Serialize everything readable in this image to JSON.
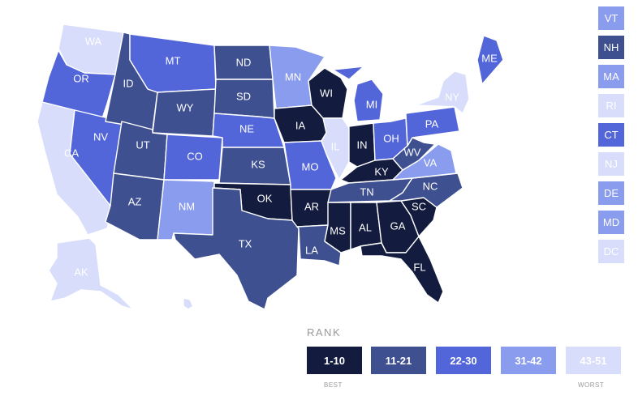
{
  "colors": {
    "tier1": "#131c3f",
    "tier2": "#3e5090",
    "tier3": "#5265d9",
    "tier4": "#8a9cee",
    "tier5": "#d7ddfa"
  },
  "states": {
    "WA": {
      "label": "WA",
      "tier": 5
    },
    "OR": {
      "label": "OR",
      "tier": 3
    },
    "CA": {
      "label": "CA",
      "tier": 5
    },
    "NV": {
      "label": "NV",
      "tier": 3
    },
    "ID": {
      "label": "ID",
      "tier": 2
    },
    "MT": {
      "label": "MT",
      "tier": 3
    },
    "WY": {
      "label": "WY",
      "tier": 2
    },
    "UT": {
      "label": "UT",
      "tier": 2
    },
    "AZ": {
      "label": "AZ",
      "tier": 2
    },
    "CO": {
      "label": "CO",
      "tier": 3
    },
    "NM": {
      "label": "NM",
      "tier": 4
    },
    "ND": {
      "label": "ND",
      "tier": 2
    },
    "SD": {
      "label": "SD",
      "tier": 2
    },
    "NE": {
      "label": "NE",
      "tier": 3
    },
    "KS": {
      "label": "KS",
      "tier": 2
    },
    "OK": {
      "label": "OK",
      "tier": 1
    },
    "TX": {
      "label": "TX",
      "tier": 2
    },
    "MN": {
      "label": "MN",
      "tier": 4
    },
    "IA": {
      "label": "IA",
      "tier": 1
    },
    "MO": {
      "label": "MO",
      "tier": 3
    },
    "AR": {
      "label": "AR",
      "tier": 1
    },
    "LA": {
      "label": "LA",
      "tier": 2
    },
    "WI": {
      "label": "WI",
      "tier": 1
    },
    "IL": {
      "label": "IL",
      "tier": 5
    },
    "MI": {
      "label": "MI",
      "tier": 3
    },
    "IN": {
      "label": "IN",
      "tier": 1
    },
    "OH": {
      "label": "OH",
      "tier": 3
    },
    "KY": {
      "label": "KY",
      "tier": 1
    },
    "TN": {
      "label": "TN",
      "tier": 2
    },
    "MS": {
      "label": "MS",
      "tier": 1
    },
    "AL": {
      "label": "AL",
      "tier": 1
    },
    "GA": {
      "label": "GA",
      "tier": 1
    },
    "FL": {
      "label": "FL",
      "tier": 1
    },
    "SC": {
      "label": "SC",
      "tier": 1
    },
    "NC": {
      "label": "NC",
      "tier": 2
    },
    "VA": {
      "label": "VA",
      "tier": 4
    },
    "WV": {
      "label": "WV",
      "tier": 2
    },
    "PA": {
      "label": "PA",
      "tier": 3
    },
    "NY": {
      "label": "NY",
      "tier": 5
    },
    "ME": {
      "label": "ME",
      "tier": 3
    },
    "AK": {
      "label": "AK",
      "tier": 5
    },
    "HI": {
      "label": "",
      "tier": 5
    }
  },
  "small_states": [
    {
      "label": "VT",
      "tier": 4
    },
    {
      "label": "NH",
      "tier": 2
    },
    {
      "label": "MA",
      "tier": 4
    },
    {
      "label": "RI",
      "tier": 5
    },
    {
      "label": "CT",
      "tier": 3
    },
    {
      "label": "NJ",
      "tier": 5
    },
    {
      "label": "DE",
      "tier": 4
    },
    {
      "label": "MD",
      "tier": 4
    },
    {
      "label": "DC",
      "tier": 5
    }
  ],
  "legend": {
    "title": "RANK",
    "items": [
      {
        "label": "1-10",
        "tier": 1
      },
      {
        "label": "11-21",
        "tier": 2
      },
      {
        "label": "22-30",
        "tier": 3
      },
      {
        "label": "31-42",
        "tier": 4
      },
      {
        "label": "43-51",
        "tier": 5
      }
    ],
    "best": "BEST",
    "worst": "WORST"
  }
}
